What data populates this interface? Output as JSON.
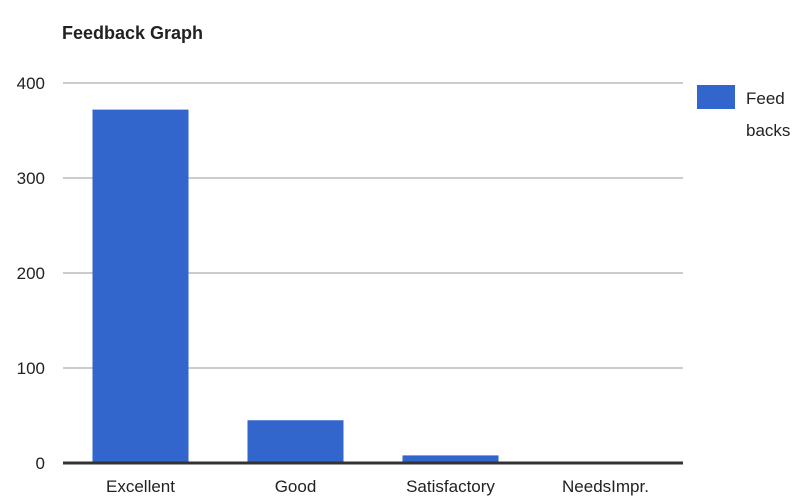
{
  "chart_data": {
    "type": "bar",
    "title": "Feedback Graph",
    "categories": [
      "Excellent",
      "Good",
      "Satisfactory",
      "NeedsImpr."
    ],
    "series": [
      {
        "name": "Feed backs",
        "legend_lines": [
          "Feed",
          "backs"
        ],
        "values": [
          372,
          45,
          8,
          0
        ]
      }
    ],
    "ylim": [
      0,
      400
    ],
    "yticks": [
      0,
      100,
      200,
      300,
      400
    ],
    "xlabel": "",
    "ylabel": "",
    "grid": true,
    "legend": "top-right",
    "colors": {
      "bar": "#3366cc",
      "grid": "#cccccc",
      "axis": "#333333"
    }
  }
}
